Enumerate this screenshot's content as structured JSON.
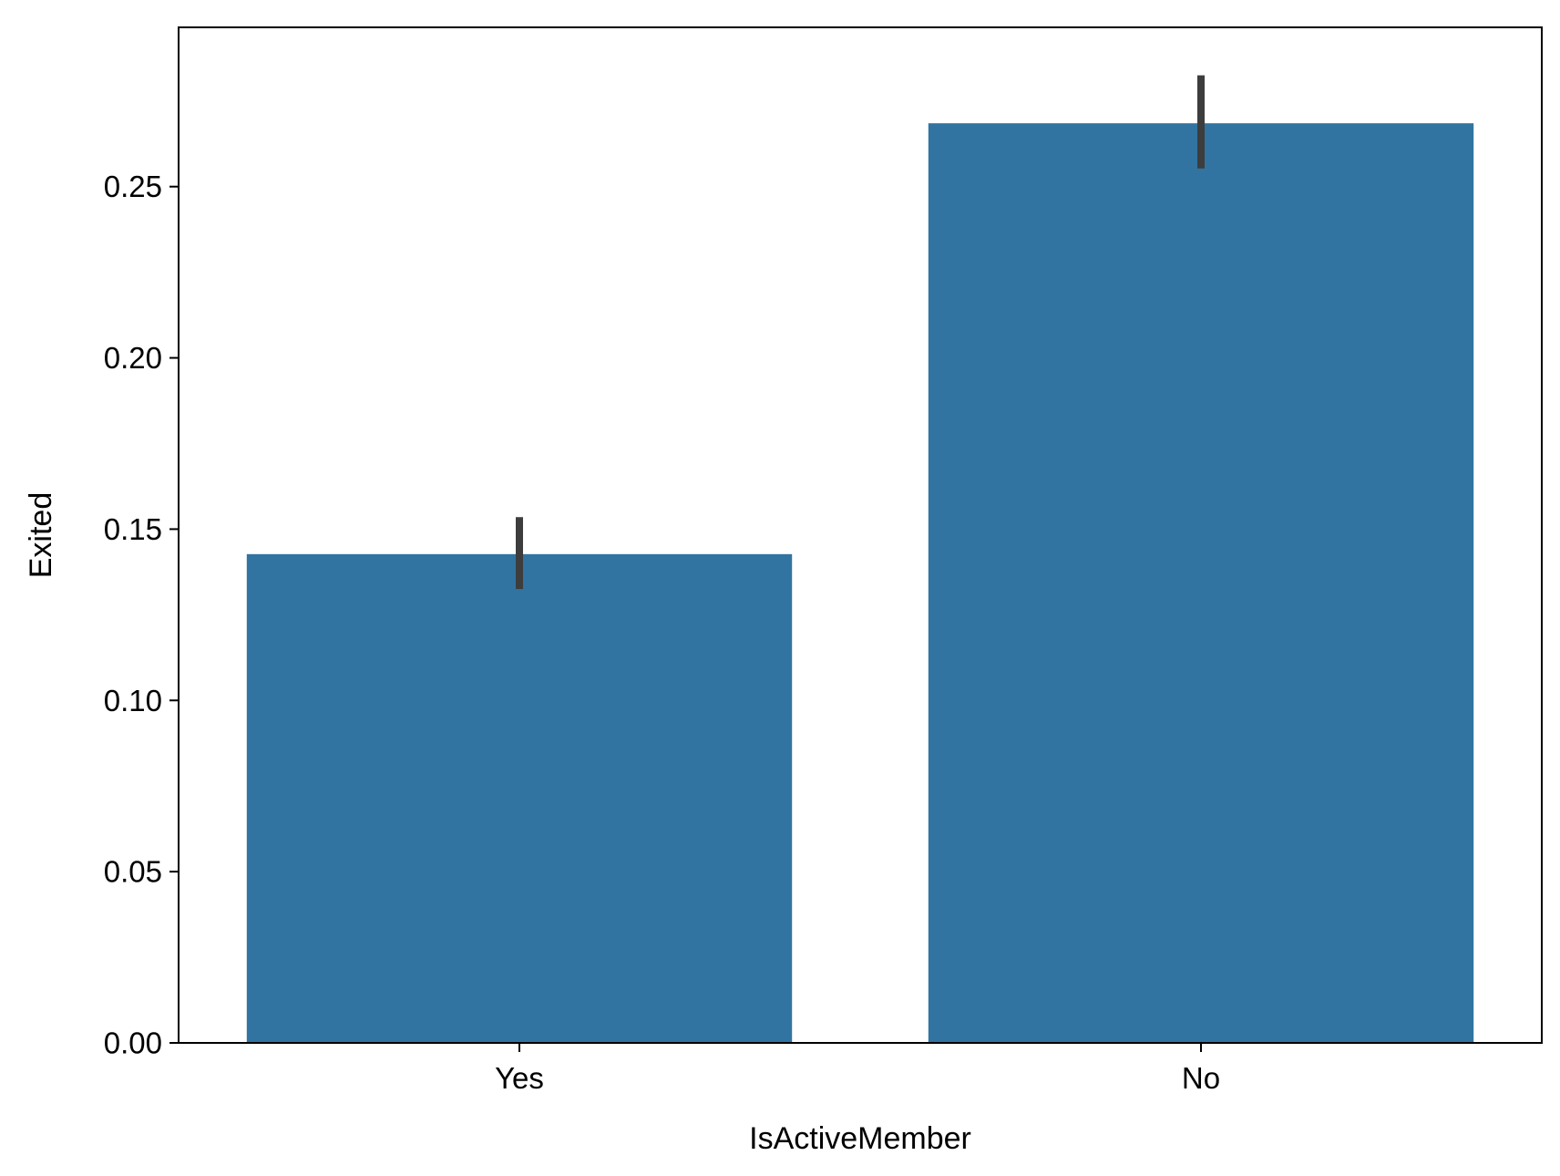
{
  "chart_data": {
    "type": "bar",
    "title": "",
    "xlabel": "IsActiveMember",
    "ylabel": "Exited",
    "categories": [
      "Yes",
      "No"
    ],
    "values": [
      0.1427,
      0.2685
    ],
    "error_bars": [
      {
        "low": 0.1325,
        "high": 0.1535
      },
      {
        "low": 0.2553,
        "high": 0.2825
      }
    ],
    "ylim": [
      0,
      0.2965
    ],
    "yticks": [
      "0.00",
      "0.05",
      "0.10",
      "0.15",
      "0.20",
      "0.25"
    ],
    "grid": false,
    "legend": "none",
    "colors": {
      "bar": "#3274a1",
      "error_bar": "#3d3d3d",
      "axis": "#000000"
    }
  }
}
